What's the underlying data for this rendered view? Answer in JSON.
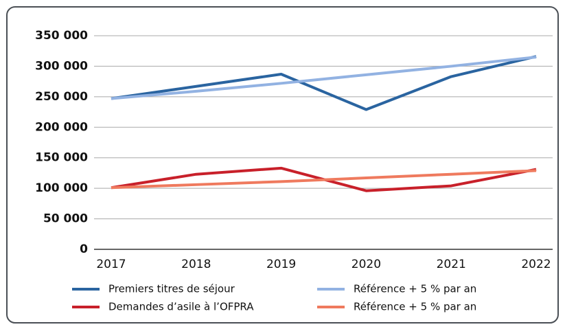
{
  "chart_data": {
    "type": "line",
    "x": [
      2017,
      2018,
      2019,
      2020,
      2021,
      2022
    ],
    "xlim": [
      2017,
      2022
    ],
    "xticks": [
      2017,
      2018,
      2019,
      2020,
      2021,
      2022
    ],
    "ylim": [
      0,
      350000
    ],
    "yticks": [
      0,
      {
        "value": 50000,
        "label": "50 000"
      },
      {
        "value": 100000,
        "label": "100 000"
      },
      {
        "value": 150000,
        "label": "150 000"
      },
      {
        "value": 200000,
        "label": "200 000"
      },
      {
        "value": 250000,
        "label": "250 000"
      },
      {
        "value": 300000,
        "label": "300 000"
      },
      {
        "value": 350000,
        "label": "350 000"
      }
    ],
    "grid": true,
    "legend": "bottom",
    "series": [
      {
        "name": "Premiers titres de séjour",
        "color": "#2a64a0",
        "values": [
          247000,
          267000,
          287000,
          229000,
          283000,
          316000
        ]
      },
      {
        "name": "Référence + 5  % par an",
        "color": "#92b2e2",
        "values": [
          247000,
          259000,
          272000,
          286000,
          300000,
          315000
        ]
      },
      {
        "name": "Demandes d’asile à l’OFPRA",
        "color": "#c8202a",
        "values": [
          101000,
          123000,
          133000,
          96000,
          104000,
          131000
        ]
      },
      {
        "name": "Référence + 5  % par an",
        "color": "#ef7a5e",
        "values": [
          101000,
          106000,
          111000,
          117000,
          123000,
          129000
        ]
      }
    ]
  }
}
